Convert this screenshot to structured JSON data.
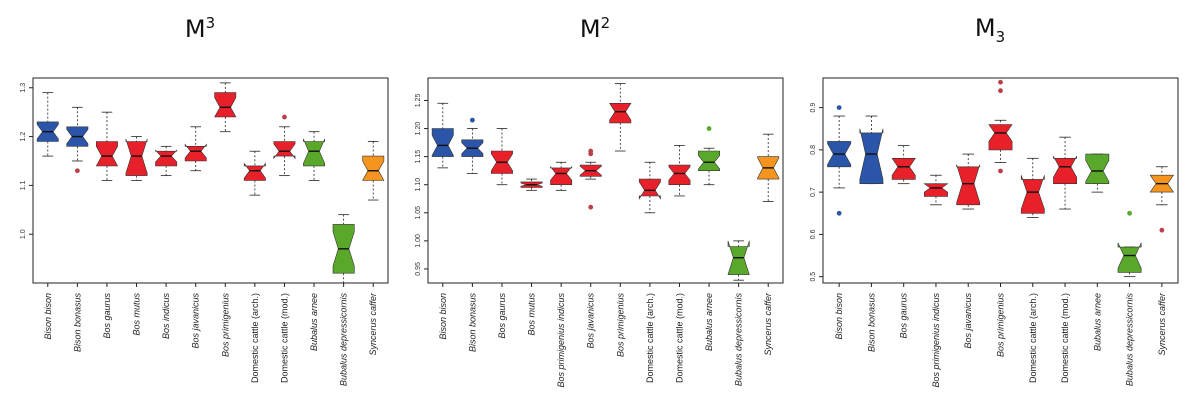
{
  "colors": {
    "blue": "#2b55a8",
    "red": "#e8202a",
    "green": "#5aa829",
    "orange": "#f5941e",
    "dot": "#b8404a"
  },
  "chart_data": [
    {
      "type": "box",
      "title_base": "M",
      "title_script": "3",
      "title_script_pos": "sup",
      "ylim": [
        0.9,
        1.32
      ],
      "yticks": [
        1.0,
        1.1,
        1.2,
        1.3
      ],
      "ytick_labels": [
        "1.0",
        "1.1",
        "1.2",
        "1.3"
      ],
      "categories": [
        "Bison bison",
        "Bison bonasus",
        "Bos gaurus",
        "Bos mutus",
        "Bos indicus",
        "Bos javanicus",
        "Bos primigenius",
        "Domestic cattle (arch.)",
        "Domestic cattle (mod.)",
        "Bubalus arnee",
        "Bubalus depressicornis",
        "Syncerus caffer"
      ],
      "italic": [
        true,
        true,
        true,
        true,
        true,
        true,
        true,
        false,
        false,
        true,
        true,
        true
      ],
      "colors": [
        "blue",
        "blue",
        "red",
        "red",
        "red",
        "red",
        "red",
        "red",
        "red",
        "green",
        "green",
        "orange"
      ],
      "boxes": [
        {
          "min": 1.16,
          "q1": 1.19,
          "med": 1.21,
          "q3": 1.23,
          "max": 1.29,
          "notch": 0.015,
          "outliers": []
        },
        {
          "min": 1.15,
          "q1": 1.18,
          "med": 1.2,
          "q3": 1.22,
          "max": 1.26,
          "notch": 0.015,
          "outliers": [
            1.13
          ]
        },
        {
          "min": 1.11,
          "q1": 1.14,
          "med": 1.16,
          "q3": 1.19,
          "max": 1.25,
          "notch": 0.02,
          "outliers": []
        },
        {
          "min": 1.11,
          "q1": 1.12,
          "med": 1.16,
          "q3": 1.19,
          "max": 1.2,
          "notch": 0.035,
          "outliers": []
        },
        {
          "min": 1.12,
          "q1": 1.14,
          "med": 1.16,
          "q3": 1.17,
          "max": 1.18,
          "notch": 0.012,
          "outliers": []
        },
        {
          "min": 1.13,
          "q1": 1.15,
          "med": 1.17,
          "q3": 1.18,
          "max": 1.22,
          "notch": 0.014,
          "outliers": []
        },
        {
          "min": 1.21,
          "q1": 1.24,
          "med": 1.26,
          "q3": 1.29,
          "max": 1.31,
          "notch": 0.02,
          "outliers": []
        },
        {
          "min": 1.08,
          "q1": 1.11,
          "med": 1.13,
          "q3": 1.14,
          "max": 1.17,
          "notch": 0.015,
          "outliers": []
        },
        {
          "min": 1.12,
          "q1": 1.16,
          "med": 1.17,
          "q3": 1.19,
          "max": 1.22,
          "notch": 0.015,
          "outliers": [
            1.24
          ]
        },
        {
          "min": 1.11,
          "q1": 1.14,
          "med": 1.17,
          "q3": 1.19,
          "max": 1.21,
          "notch": 0.025,
          "outliers": []
        },
        {
          "min": 0.9,
          "q1": 0.92,
          "med": 0.97,
          "q3": 1.02,
          "max": 1.04,
          "notch": 0.035,
          "outliers": []
        },
        {
          "min": 1.07,
          "q1": 1.11,
          "med": 1.13,
          "q3": 1.16,
          "max": 1.19,
          "notch": 0.02,
          "outliers": []
        }
      ]
    },
    {
      "type": "box",
      "title_base": "M",
      "title_script": "2",
      "title_script_pos": "sup",
      "ylim": [
        0.925,
        1.29
      ],
      "yticks": [
        0.95,
        1.0,
        1.05,
        1.1,
        1.15,
        1.2,
        1.25
      ],
      "ytick_labels": [
        "0.95",
        "1.00",
        "1.05",
        "1.10",
        "1.15",
        "1.20",
        "1.25"
      ],
      "categories": [
        "Bison bison",
        "Bison bonasus",
        "Bos gaurus",
        "Bos mutus",
        "Bos primigenius indicus",
        "Bos javanicus",
        "Bos primigenius",
        "Domestic cattle (arch.)",
        "Domestic cattle (mod.)",
        "Bubalus arnee",
        "Bubalus depressicornis",
        "Syncerus caffer"
      ],
      "italic": [
        true,
        true,
        true,
        true,
        true,
        true,
        true,
        false,
        false,
        true,
        true,
        true
      ],
      "colors": [
        "blue",
        "blue",
        "red",
        "red",
        "red",
        "red",
        "red",
        "red",
        "red",
        "green",
        "green",
        "orange"
      ],
      "boxes": [
        {
          "min": 1.13,
          "q1": 1.15,
          "med": 1.17,
          "q3": 1.2,
          "max": 1.245,
          "notch": 0.018,
          "outliers": []
        },
        {
          "min": 1.12,
          "q1": 1.15,
          "med": 1.165,
          "q3": 1.18,
          "max": 1.2,
          "notch": 0.01,
          "outliers": [
            1.215
          ]
        },
        {
          "min": 1.1,
          "q1": 1.12,
          "med": 1.14,
          "q3": 1.16,
          "max": 1.2,
          "notch": 0.015,
          "outliers": []
        },
        {
          "min": 1.09,
          "q1": 1.095,
          "med": 1.1,
          "q3": 1.105,
          "max": 1.11,
          "notch": 0.003,
          "outliers": []
        },
        {
          "min": 1.09,
          "q1": 1.1,
          "med": 1.12,
          "q3": 1.13,
          "max": 1.14,
          "notch": 0.012,
          "outliers": []
        },
        {
          "min": 1.11,
          "q1": 1.115,
          "med": 1.125,
          "q3": 1.135,
          "max": 1.14,
          "notch": 0.008,
          "outliers": [
            1.16,
            1.155,
            1.06
          ]
        },
        {
          "min": 1.16,
          "q1": 1.21,
          "med": 1.23,
          "q3": 1.245,
          "max": 1.28,
          "notch": 0.015,
          "outliers": []
        },
        {
          "min": 1.05,
          "q1": 1.08,
          "med": 1.09,
          "q3": 1.11,
          "max": 1.14,
          "notch": 0.015,
          "outliers": []
        },
        {
          "min": 1.08,
          "q1": 1.1,
          "med": 1.12,
          "q3": 1.135,
          "max": 1.17,
          "notch": 0.012,
          "outliers": []
        },
        {
          "min": 1.1,
          "q1": 1.125,
          "med": 1.14,
          "q3": 1.16,
          "max": 1.165,
          "notch": 0.012,
          "outliers": [
            1.2
          ]
        },
        {
          "min": 0.93,
          "q1": 0.94,
          "med": 0.97,
          "q3": 0.99,
          "max": 1.0,
          "notch": 0.03,
          "outliers": []
        },
        {
          "min": 1.07,
          "q1": 1.11,
          "med": 1.13,
          "q3": 1.15,
          "max": 1.19,
          "notch": 0.018,
          "outliers": []
        }
      ]
    },
    {
      "type": "box",
      "title_base": "M",
      "title_script": "3",
      "title_script_pos": "sub",
      "ylim": [
        0.485,
        0.97
      ],
      "yticks": [
        0.5,
        0.6,
        0.7,
        0.8,
        0.9
      ],
      "ytick_labels": [
        "0.5",
        "0.6",
        "0.7",
        "0.8",
        "0.9"
      ],
      "categories": [
        "Bison bison",
        "Bison bonasus",
        "Bos gaurus",
        "Bos primigenius indicus",
        "Bos javanicus",
        "Bos primigenius",
        "Domestic cattle (arch.)",
        "Domestic cattle (mod.)",
        "Bubalus arnee",
        "Bubalus depressicornis",
        "Syncerus caffer"
      ],
      "italic": [
        true,
        true,
        true,
        true,
        true,
        true,
        false,
        false,
        true,
        true,
        true
      ],
      "colors": [
        "blue",
        "blue",
        "red",
        "red",
        "red",
        "red",
        "red",
        "red",
        "green",
        "green",
        "orange"
      ],
      "boxes": [
        {
          "min": 0.71,
          "q1": 0.76,
          "med": 0.79,
          "q3": 0.82,
          "max": 0.88,
          "notch": 0.025,
          "outliers": [
            0.9,
            0.65
          ]
        },
        {
          "min": 0.72,
          "q1": 0.72,
          "med": 0.79,
          "q3": 0.84,
          "max": 0.88,
          "notch": 0.06,
          "outliers": []
        },
        {
          "min": 0.72,
          "q1": 0.73,
          "med": 0.76,
          "q3": 0.78,
          "max": 0.81,
          "notch": 0.02,
          "outliers": []
        },
        {
          "min": 0.67,
          "q1": 0.69,
          "med": 0.71,
          "q3": 0.72,
          "max": 0.74,
          "notch": 0.01,
          "outliers": []
        },
        {
          "min": 0.66,
          "q1": 0.67,
          "med": 0.72,
          "q3": 0.76,
          "max": 0.79,
          "notch": 0.045,
          "outliers": []
        },
        {
          "min": 0.77,
          "q1": 0.8,
          "med": 0.84,
          "q3": 0.86,
          "max": 0.87,
          "notch": 0.02,
          "outliers": [
            0.96,
            0.94,
            0.75
          ]
        },
        {
          "min": 0.64,
          "q1": 0.65,
          "med": 0.7,
          "q3": 0.73,
          "max": 0.78,
          "notch": 0.04,
          "outliers": []
        },
        {
          "min": 0.66,
          "q1": 0.72,
          "med": 0.76,
          "q3": 0.78,
          "max": 0.83,
          "notch": 0.025,
          "outliers": []
        },
        {
          "min": 0.7,
          "q1": 0.72,
          "med": 0.75,
          "q3": 0.79,
          "max": 0.79,
          "notch": 0.025,
          "outliers": []
        },
        {
          "min": 0.5,
          "q1": 0.51,
          "med": 0.55,
          "q3": 0.57,
          "max": 0.57,
          "notch": 0.03,
          "outliers": [
            0.65
          ]
        },
        {
          "min": 0.67,
          "q1": 0.7,
          "med": 0.72,
          "q3": 0.74,
          "max": 0.76,
          "notch": 0.02,
          "outliers": [
            0.61
          ]
        }
      ]
    }
  ]
}
